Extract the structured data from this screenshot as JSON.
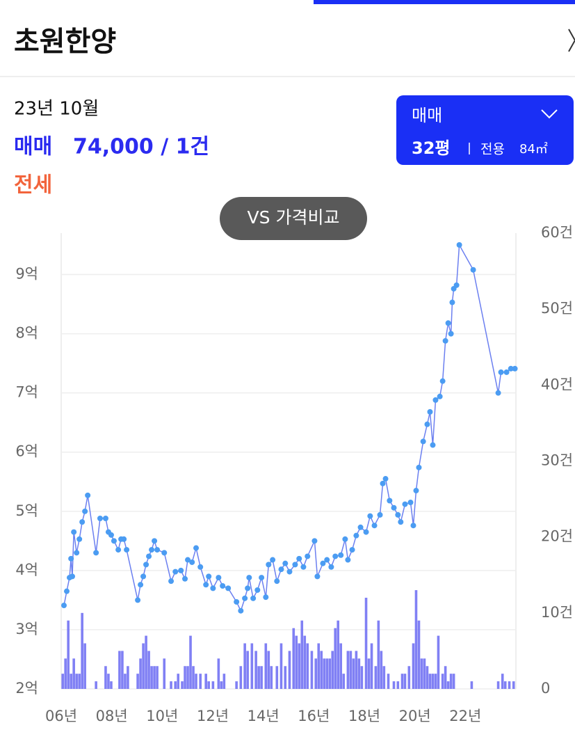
{
  "header": {
    "title": "초원한양"
  },
  "summary": {
    "date": "23년 10월",
    "trade_label": "매매",
    "trade_value": "74,000 / 1건",
    "jeonse": "전세"
  },
  "selector": {
    "type": "매매",
    "size": "32평",
    "area_label": "전용",
    "area": "84㎡"
  },
  "compare_button": "VS 가격비교",
  "chart_data": {
    "type": "combo",
    "xlim": [
      2006,
      2024
    ],
    "ylim": [
      2,
      9.7
    ],
    "y2lim": [
      0,
      60
    ],
    "grid": true,
    "xticks": [
      {
        "value": 2006,
        "label": "06년"
      },
      {
        "value": 2008,
        "label": "08년"
      },
      {
        "value": 2010,
        "label": "10년"
      },
      {
        "value": 2012,
        "label": "12년"
      },
      {
        "value": 2014,
        "label": "14년"
      },
      {
        "value": 2016,
        "label": "16년"
      },
      {
        "value": 2018,
        "label": "18년"
      },
      {
        "value": 2020,
        "label": "20년"
      },
      {
        "value": 2022,
        "label": "22년"
      }
    ],
    "yticks": [
      {
        "value": 2,
        "label": "2억"
      },
      {
        "value": 3,
        "label": "3억"
      },
      {
        "value": 4,
        "label": "4억"
      },
      {
        "value": 5,
        "label": "5억"
      },
      {
        "value": 6,
        "label": "6억"
      },
      {
        "value": 7,
        "label": "7억"
      },
      {
        "value": 8,
        "label": "8억"
      },
      {
        "value": 9,
        "label": "9억"
      }
    ],
    "y2ticks": [
      0,
      {
        "value": 10,
        "label": "10건"
      },
      {
        "value": 20,
        "label": "20건"
      },
      {
        "value": 30,
        "label": "30건"
      },
      {
        "value": 40,
        "label": "40건"
      },
      {
        "value": 50,
        "label": "50건"
      },
      {
        "value": 60,
        "label": "60건"
      }
    ],
    "series": [
      {
        "type": "bar",
        "axis": "y2",
        "color": "#6a6af2",
        "x": [
          2006.06,
          2006.17,
          2006.28,
          2006.39,
          2006.5,
          2006.61,
          2006.72,
          2006.83,
          2006.94,
          2007.38,
          2007.76,
          2007.87,
          2007.98,
          2008.31,
          2008.42,
          2008.53,
          2008.64,
          2009.03,
          2009.14,
          2009.25,
          2009.36,
          2009.47,
          2009.58,
          2009.69,
          2009.8,
          2010.08,
          2010.35,
          2010.52,
          2010.63,
          2010.79,
          2010.9,
          2011.01,
          2011.12,
          2011.23,
          2011.34,
          2011.51,
          2011.73,
          2011.84,
          2012.01,
          2012.23,
          2012.34,
          2012.45,
          2012.94,
          2013.11,
          2013.27,
          2013.38,
          2013.55,
          2013.71,
          2013.82,
          2013.93,
          2014.1,
          2014.21,
          2014.32,
          2014.54,
          2014.71,
          2014.87,
          2015.04,
          2015.2,
          2015.31,
          2015.42,
          2015.53,
          2015.64,
          2015.75,
          2015.92,
          2016.08,
          2016.19,
          2016.3,
          2016.41,
          2016.52,
          2016.63,
          2016.74,
          2016.85,
          2016.96,
          2017.07,
          2017.18,
          2017.35,
          2017.46,
          2017.57,
          2017.68,
          2017.79,
          2017.9,
          2018.07,
          2018.18,
          2018.29,
          2018.45,
          2018.56,
          2018.67,
          2018.78,
          2018.95,
          2019.17,
          2019.33,
          2019.5,
          2019.61,
          2019.77,
          2019.94,
          2020.05,
          2020.16,
          2020.27,
          2020.38,
          2020.49,
          2020.6,
          2020.71,
          2020.82,
          2020.93,
          2021.1,
          2021.21,
          2021.32,
          2021.43,
          2021.54,
          2022.25,
          2023.3,
          2023.47,
          2023.58,
          2023.74,
          2023.91
        ],
        "values": [
          2,
          4,
          9,
          2,
          4,
          2,
          2,
          10,
          6,
          1,
          3,
          2,
          1,
          5,
          5,
          2,
          3,
          2,
          4,
          6,
          7,
          5,
          3,
          3,
          3,
          4,
          1,
          1,
          2,
          1,
          3,
          3,
          7,
          3,
          2,
          2,
          2,
          1,
          1,
          4,
          1,
          2,
          1,
          3,
          6,
          5,
          6,
          5,
          3,
          3,
          6,
          5,
          3,
          3,
          6,
          3,
          5,
          8,
          7,
          6,
          9,
          7,
          6,
          5,
          4,
          6,
          5,
          4,
          4,
          4,
          5,
          8,
          9,
          6,
          2,
          5,
          5,
          4,
          5,
          4,
          3,
          12,
          4,
          6,
          3,
          9,
          5,
          3,
          2,
          1,
          1,
          2,
          2,
          3,
          6,
          13,
          9,
          4,
          4,
          3,
          2,
          2,
          2,
          7,
          2,
          3,
          1,
          2,
          2,
          1,
          1,
          2,
          1,
          1,
          1
        ]
      },
      {
        "type": "line",
        "color": "#6b7ff0",
        "marker_color": "#4b9cf2",
        "x": [
          2006.11,
          2006.22,
          2006.33,
          2006.39,
          2006.44,
          2006.5,
          2006.61,
          2006.72,
          2006.83,
          2006.94,
          2007.05,
          2007.38,
          2007.54,
          2007.76,
          2007.87,
          2007.98,
          2008.09,
          2008.26,
          2008.37,
          2008.48,
          2008.59,
          2009.03,
          2009.14,
          2009.25,
          2009.36,
          2009.47,
          2009.58,
          2009.69,
          2009.8,
          2010.08,
          2010.35,
          2010.52,
          2010.74,
          2010.9,
          2011.01,
          2011.18,
          2011.34,
          2011.51,
          2011.73,
          2011.84,
          2012.01,
          2012.23,
          2012.39,
          2012.61,
          2012.94,
          2013.11,
          2013.27,
          2013.38,
          2013.44,
          2013.6,
          2013.77,
          2013.93,
          2014.1,
          2014.21,
          2014.37,
          2014.54,
          2014.71,
          2014.87,
          2015.04,
          2015.26,
          2015.42,
          2015.59,
          2015.75,
          2016.03,
          2016.14,
          2016.36,
          2016.52,
          2016.69,
          2016.85,
          2017.07,
          2017.24,
          2017.35,
          2017.52,
          2017.68,
          2017.85,
          2018.07,
          2018.23,
          2018.4,
          2018.62,
          2018.73,
          2018.84,
          2019.0,
          2019.17,
          2019.33,
          2019.44,
          2019.61,
          2019.83,
          2019.94,
          2020.05,
          2020.16,
          2020.33,
          2020.49,
          2020.6,
          2020.71,
          2020.82,
          2020.99,
          2021.1,
          2021.21,
          2021.32,
          2021.43,
          2021.48,
          2021.54,
          2021.65,
          2021.76,
          2022.31,
          2023.3,
          2023.41,
          2023.63,
          2023.8,
          2023.96
        ],
        "values": [
          3.41,
          3.65,
          3.88,
          4.2,
          3.9,
          4.65,
          4.3,
          4.53,
          4.82,
          5.0,
          5.27,
          4.3,
          4.88,
          4.88,
          4.65,
          4.6,
          4.5,
          4.35,
          4.53,
          4.53,
          4.35,
          3.5,
          3.76,
          3.9,
          4.1,
          4.24,
          4.35,
          4.5,
          4.35,
          4.3,
          3.82,
          3.98,
          4.0,
          3.86,
          4.18,
          4.14,
          4.38,
          4.06,
          3.76,
          3.9,
          3.7,
          3.88,
          3.74,
          3.7,
          3.47,
          3.32,
          3.53,
          3.7,
          3.88,
          3.53,
          3.67,
          3.88,
          3.55,
          4.1,
          4.18,
          3.82,
          4.02,
          4.12,
          3.98,
          4.1,
          4.2,
          4.06,
          4.24,
          4.5,
          3.9,
          4.12,
          4.18,
          4.06,
          4.24,
          4.26,
          4.53,
          4.18,
          4.35,
          4.59,
          4.73,
          4.65,
          4.92,
          4.76,
          4.94,
          5.47,
          5.55,
          5.18,
          5.06,
          4.94,
          4.82,
          5.12,
          5.15,
          4.76,
          5.35,
          5.74,
          6.18,
          6.47,
          6.68,
          6.12,
          6.88,
          6.94,
          7.2,
          7.88,
          8.18,
          8.0,
          8.53,
          8.76,
          8.82,
          9.5,
          9.08,
          7.0,
          7.35,
          7.35,
          7.41,
          7.41
        ]
      }
    ]
  }
}
